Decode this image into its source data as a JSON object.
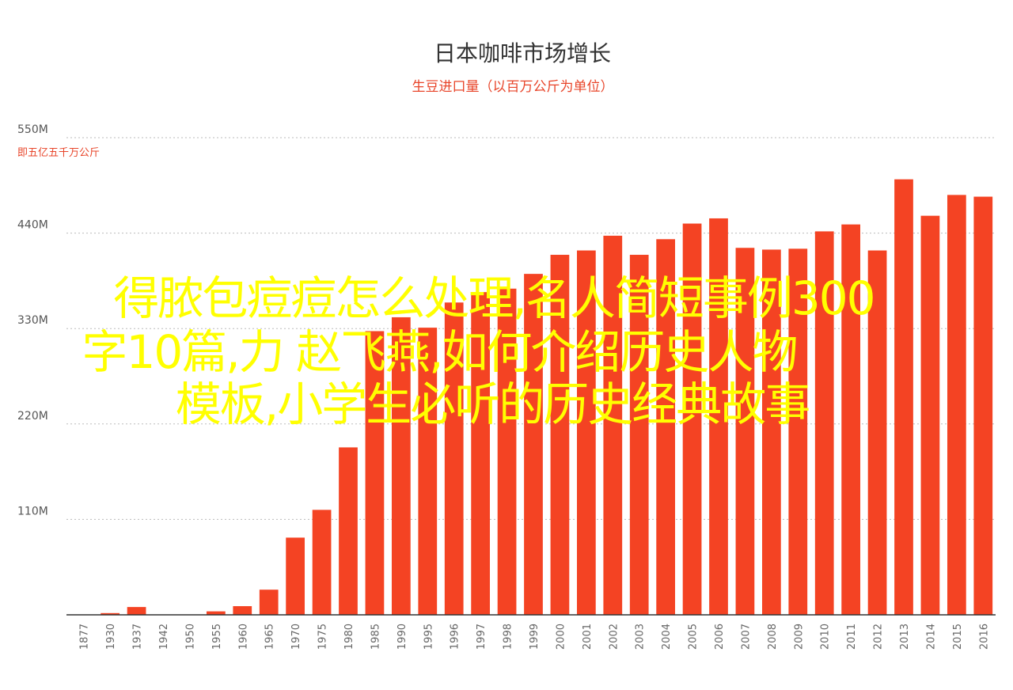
{
  "chart_data": {
    "type": "bar",
    "title": "日本咖啡市场增长",
    "subtitle": "生豆进口量（以百万公斤为单位）",
    "ylabel_note": "即五亿五千万公斤",
    "ylim": [
      0,
      550
    ],
    "yticks": [
      {
        "value": 110,
        "label": "110M"
      },
      {
        "value": 220,
        "label": "220M"
      },
      {
        "value": 330,
        "label": "330M"
      },
      {
        "value": 440,
        "label": "440M"
      },
      {
        "value": 550,
        "label": "550M"
      }
    ],
    "grid": true,
    "color": "#f44323",
    "categories": [
      "1877",
      "1930",
      "1937",
      "1942",
      "1950",
      "1955",
      "1960",
      "1965",
      "1970",
      "1975",
      "1980",
      "1985",
      "1990",
      "1995",
      "1996",
      "1997",
      "1998",
      "1999",
      "2000",
      "2001",
      "2002",
      "2003",
      "2004",
      "2005",
      "2006",
      "2007",
      "2008",
      "2009",
      "2010",
      "2011",
      "2012",
      "2013",
      "2014",
      "2015",
      "2016"
    ],
    "values": [
      0,
      2,
      9,
      0,
      0,
      4,
      10,
      29,
      89,
      121,
      193,
      327,
      343,
      331,
      360,
      372,
      376,
      393,
      415,
      420,
      437,
      415,
      433,
      451,
      457,
      423,
      421,
      422,
      442,
      450,
      420,
      502,
      460,
      484,
      482
    ]
  },
  "overlay": {
    "lines": [
      "得脓包痘痘怎么处理,名人简短事例300",
      "字10篇,力 赵飞燕,如何介绍历史人物",
      "模板,小学生必听的历史经典故事"
    ]
  }
}
